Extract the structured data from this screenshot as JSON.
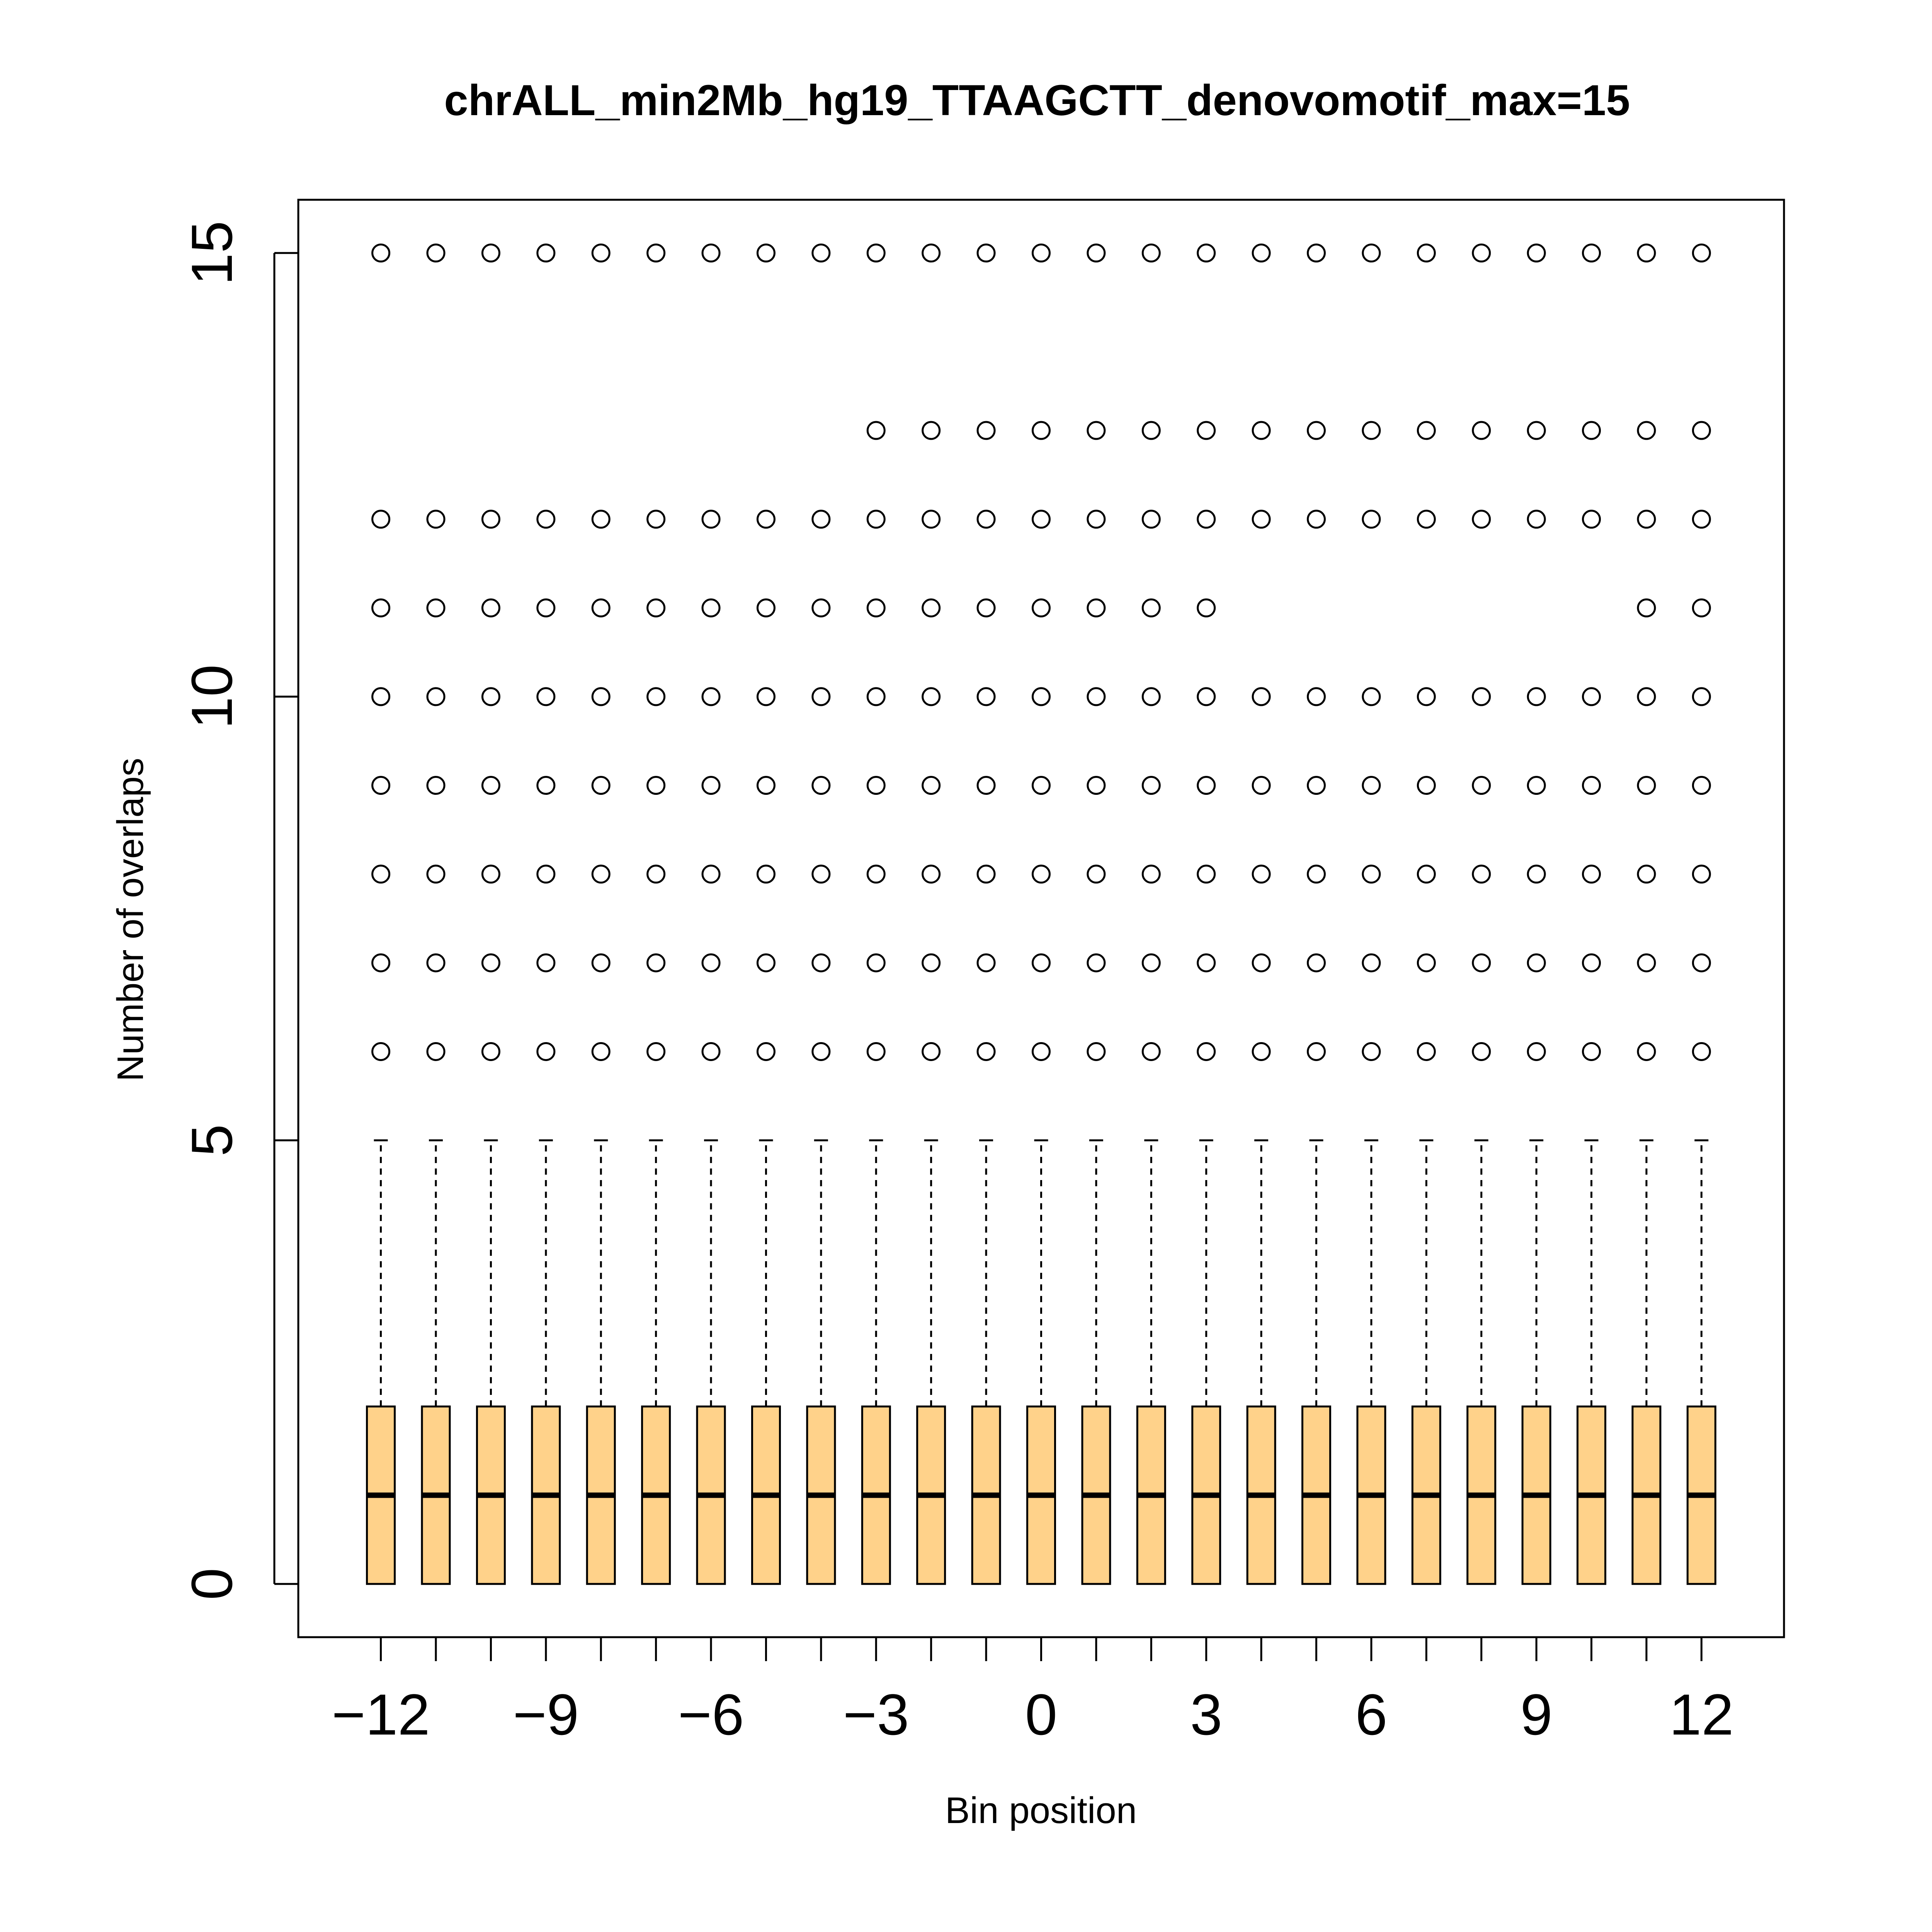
{
  "chart_data": {
    "type": "boxplot",
    "title": "chrALL_min2Mb_hg19_TTAAGCTT_denovomotif_max=15",
    "xlabel": "Bin position",
    "ylabel": "Number of overlaps",
    "x_tick_labels": [
      "−12",
      "−9",
      "−6",
      "−3",
      "0",
      "3",
      "6",
      "9",
      "12"
    ],
    "x_tick_values": [
      -12,
      -9,
      -6,
      -3,
      0,
      3,
      6,
      9,
      12
    ],
    "y_tick_labels": [
      "0",
      "5",
      "10",
      "15"
    ],
    "y_tick_values": [
      0,
      5,
      10,
      15
    ],
    "xlim": [
      -13.5,
      13.5
    ],
    "ylim": [
      -0.6,
      15.6
    ],
    "grid": false,
    "box_color": "#FFD28A",
    "categories": [
      -12,
      -11,
      -10,
      -9,
      -8,
      -7,
      -6,
      -5,
      -4,
      -3,
      -2,
      -1,
      0,
      1,
      2,
      3,
      4,
      5,
      6,
      7,
      8,
      9,
      10,
      11,
      12
    ],
    "boxes": {
      "whisker_low": 0,
      "q1": 0,
      "median": 1,
      "q3": 2,
      "whisker_high": 5
    },
    "outliers": [
      [
        6,
        7,
        8,
        9,
        10,
        11,
        12,
        15
      ],
      [
        6,
        7,
        8,
        9,
        10,
        11,
        12,
        15
      ],
      [
        6,
        7,
        8,
        9,
        10,
        11,
        12,
        15
      ],
      [
        6,
        7,
        8,
        9,
        10,
        11,
        12,
        15
      ],
      [
        6,
        7,
        8,
        9,
        10,
        11,
        12,
        15
      ],
      [
        6,
        7,
        8,
        9,
        10,
        11,
        12,
        15
      ],
      [
        6,
        7,
        8,
        9,
        10,
        11,
        12,
        15
      ],
      [
        6,
        7,
        8,
        9,
        10,
        11,
        12,
        15
      ],
      [
        6,
        7,
        8,
        9,
        10,
        11,
        12,
        15
      ],
      [
        6,
        7,
        8,
        9,
        10,
        11,
        12,
        13,
        15
      ],
      [
        6,
        7,
        8,
        9,
        10,
        11,
        12,
        13,
        15
      ],
      [
        6,
        7,
        8,
        9,
        10,
        11,
        12,
        13,
        15
      ],
      [
        6,
        7,
        8,
        9,
        10,
        11,
        12,
        13,
        15
      ],
      [
        6,
        7,
        8,
        9,
        10,
        11,
        12,
        13,
        15
      ],
      [
        6,
        7,
        8,
        9,
        10,
        11,
        12,
        13,
        15
      ],
      [
        6,
        7,
        8,
        9,
        10,
        11,
        12,
        13,
        15
      ],
      [
        6,
        7,
        8,
        9,
        10,
        12,
        13,
        15
      ],
      [
        6,
        7,
        8,
        9,
        10,
        12,
        13,
        15
      ],
      [
        6,
        7,
        8,
        9,
        10,
        12,
        13,
        15
      ],
      [
        6,
        7,
        8,
        9,
        10,
        12,
        13,
        15
      ],
      [
        6,
        7,
        8,
        9,
        10,
        12,
        13,
        15
      ],
      [
        6,
        7,
        8,
        9,
        10,
        12,
        13,
        15
      ],
      [
        6,
        7,
        8,
        9,
        10,
        12,
        13,
        15
      ],
      [
        6,
        7,
        8,
        9,
        10,
        11,
        12,
        13,
        15
      ],
      [
        6,
        7,
        8,
        9,
        10,
        11,
        12,
        13,
        15
      ]
    ]
  }
}
